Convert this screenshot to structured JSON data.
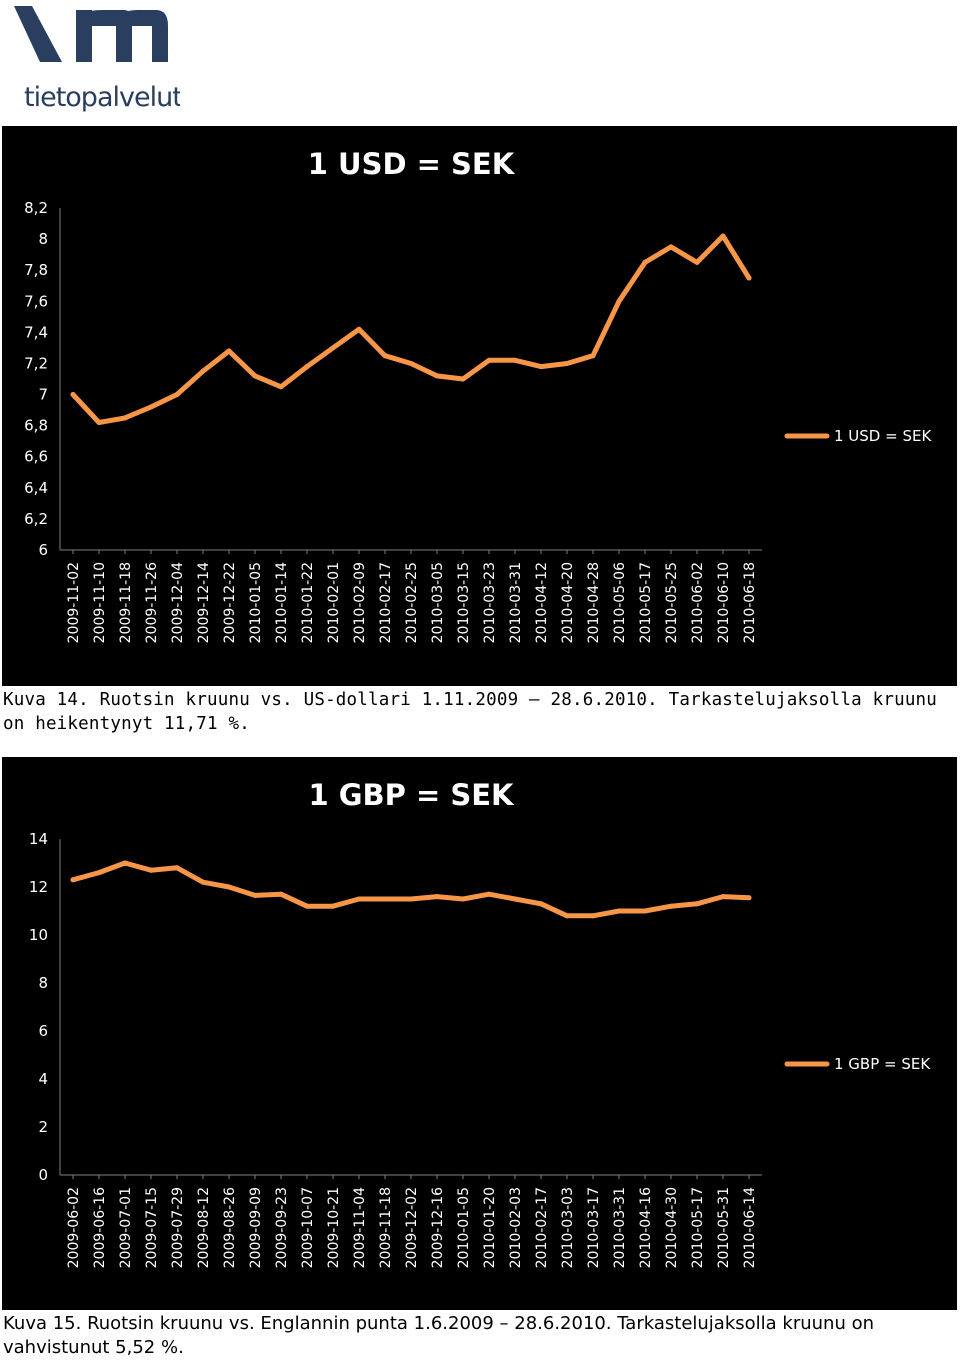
{
  "logo": {
    "text": "tietopalvelut",
    "color": "#2a3f5f"
  },
  "chart_data": [
    {
      "type": "line",
      "title": "1 USD = SEK",
      "ylim": [
        6,
        8.2
      ],
      "yticks": [
        "8,2",
        "8",
        "7,8",
        "7,6",
        "7,4",
        "7,2",
        "7",
        "6,8",
        "6,6",
        "6,4",
        "6,2",
        "6"
      ],
      "x": [
        "2009-11-02",
        "2009-11-10",
        "2009-11-18",
        "2009-11-26",
        "2009-12-04",
        "2009-12-14",
        "2009-12-22",
        "2010-01-05",
        "2010-01-14",
        "2010-01-22",
        "2010-02-01",
        "2010-02-09",
        "2010-02-17",
        "2010-02-25",
        "2010-03-05",
        "2010-03-15",
        "2010-03-23",
        "2010-03-31",
        "2010-04-12",
        "2010-04-20",
        "2010-04-28",
        "2010-05-06",
        "2010-05-17",
        "2010-05-25",
        "2010-06-02",
        "2010-06-10",
        "2010-06-18"
      ],
      "series": [
        {
          "name": "1 USD = SEK",
          "color": "#f79646",
          "values": [
            7.0,
            6.82,
            6.85,
            6.92,
            7.0,
            7.15,
            7.28,
            7.12,
            7.05,
            7.18,
            7.3,
            7.42,
            7.25,
            7.2,
            7.12,
            7.1,
            7.22,
            7.22,
            7.18,
            7.2,
            7.25,
            7.6,
            7.85,
            7.95,
            7.85,
            8.02,
            7.75
          ]
        }
      ],
      "legend": "right",
      "grid": false
    },
    {
      "type": "line",
      "title": "1 GBP = SEK",
      "ylim": [
        0,
        14
      ],
      "yticks": [
        "14",
        "12",
        "10",
        "8",
        "6",
        "4",
        "2",
        "0"
      ],
      "x": [
        "2009-06-02",
        "2009-06-16",
        "2009-07-01",
        "2009-07-15",
        "2009-07-29",
        "2009-08-12",
        "2009-08-26",
        "2009-09-09",
        "2009-09-23",
        "2009-10-07",
        "2009-10-21",
        "2009-11-04",
        "2009-11-18",
        "2009-12-02",
        "2009-12-16",
        "2010-01-05",
        "2010-01-20",
        "2010-02-03",
        "2010-02-17",
        "2010-03-03",
        "2010-03-17",
        "2010-03-31",
        "2010-04-16",
        "2010-04-30",
        "2010-05-17",
        "2010-05-31",
        "2010-06-14"
      ],
      "series": [
        {
          "name": "1 GBP = SEK",
          "color": "#f79646",
          "values": [
            12.3,
            12.6,
            13.0,
            12.7,
            12.8,
            12.2,
            12.0,
            11.65,
            11.7,
            11.2,
            11.2,
            11.5,
            11.5,
            11.5,
            11.6,
            11.5,
            11.7,
            11.5,
            11.3,
            10.8,
            10.8,
            11.0,
            11.0,
            11.2,
            11.3,
            11.6,
            11.55
          ]
        }
      ],
      "legend": "right",
      "grid": false
    }
  ],
  "captions": {
    "kuva14": "Kuva 14. Ruotsin kruunu vs. US-dollari 1.11.2009 – 28.6.2010. Tarkastelujaksolla kruunu on heikentynyt 11,71 %.",
    "kuva15": "Kuva 15. Ruotsin kruunu vs. Englannin punta 1.6.2009 – 28.6.2010. Tarkastelujaksolla kruunu on vahvistunut 5,52 %."
  }
}
